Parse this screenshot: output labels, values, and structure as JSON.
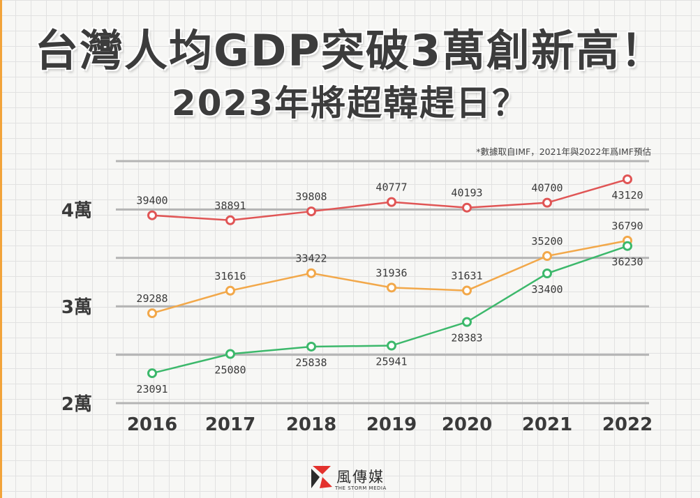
{
  "title": "台灣人均GDP突破3萬創新高！",
  "subtitle": "2023年將超韓趕日？",
  "note": "*數據取自IMF，2021年與2022年爲IMF預估",
  "brand": {
    "name": "風傳媒",
    "sub": "THE STORM MEDIA"
  },
  "chart_data": {
    "type": "line",
    "x": [
      "2016",
      "2017",
      "2018",
      "2019",
      "2020",
      "2021",
      "2022"
    ],
    "y_ticks": [
      {
        "value": 20000,
        "label": "2萬"
      },
      {
        "value": 30000,
        "label": "3萬"
      },
      {
        "value": 40000,
        "label": "4萬"
      }
    ],
    "gridlines": [
      20000,
      25000,
      30000,
      35000,
      40000,
      45000
    ],
    "ylim": [
      20000,
      45000
    ],
    "grid": true,
    "legend": "none",
    "series": [
      {
        "color": "#e05555",
        "values": [
          39400,
          38891,
          39808,
          40777,
          40193,
          40700,
          43120
        ]
      },
      {
        "color": "#f2a84a",
        "values": [
          29288,
          31616,
          33422,
          31936,
          31631,
          35200,
          36790
        ]
      },
      {
        "color": "#3cb86b",
        "values": [
          23091,
          25080,
          25838,
          25941,
          28383,
          33400,
          36230
        ]
      }
    ]
  }
}
